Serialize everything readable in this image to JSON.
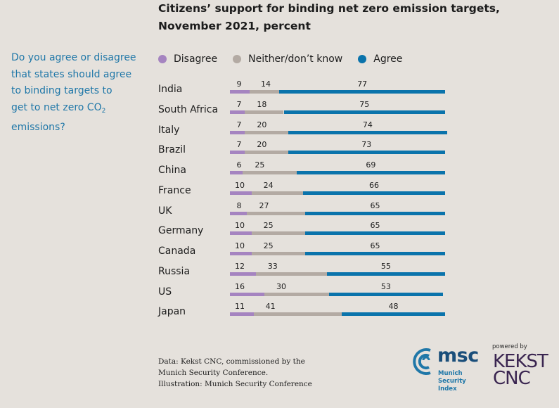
{
  "header": {
    "title_line1": "Citizens’ support for binding net zero emission targets,",
    "title_line2": "November 2021, percent"
  },
  "question": {
    "line1": "Do you agree or disagree",
    "line2": "that states should agree",
    "line3": "to binding targets to",
    "line4_prefix": "get to net zero CO",
    "line4_sub": "2",
    "line5": "emissions?"
  },
  "colors": {
    "disagree": "#a584c0",
    "neither": "#b3aaa3",
    "agree": "#0a73ab",
    "question_text": "#1f77a8",
    "background": "#e5e1dc"
  },
  "chart_data": {
    "type": "bar",
    "orientation": "horizontal",
    "stacked": true,
    "title": "Citizens’ support for binding net zero emission targets, November 2021, percent",
    "xlabel": "",
    "ylabel": "",
    "xlim": [
      0,
      100
    ],
    "grid": false,
    "legend_position": "top",
    "categories": [
      "India",
      "South Africa",
      "Italy",
      "Brazil",
      "China",
      "France",
      "UK",
      "Germany",
      "Canada",
      "Russia",
      "US",
      "Japan"
    ],
    "series": [
      {
        "name": "Disagree",
        "color": "#a584c0",
        "values": [
          9,
          7,
          7,
          7,
          6,
          10,
          8,
          10,
          10,
          12,
          16,
          11
        ]
      },
      {
        "name": "Neither/don’t know",
        "color": "#b3aaa3",
        "values": [
          14,
          18,
          20,
          20,
          25,
          24,
          27,
          25,
          25,
          33,
          30,
          41
        ]
      },
      {
        "name": "Agree",
        "color": "#0a73ab",
        "values": [
          77,
          75,
          74,
          73,
          69,
          66,
          65,
          65,
          65,
          55,
          53,
          48
        ]
      }
    ]
  },
  "footer": {
    "source_line1": "Data: Kekst CNC, commissioned by the",
    "source_line2": "Munich Security Conference.",
    "source_line3": "Illustration: Munich Security Conference",
    "msc_logo_text": "msc",
    "msc_logo_sub1": "Munich Security",
    "msc_logo_sub2": "Index",
    "powered_by": "powered by",
    "kekst_line1": "KEKST",
    "kekst_line2": "CNC"
  }
}
